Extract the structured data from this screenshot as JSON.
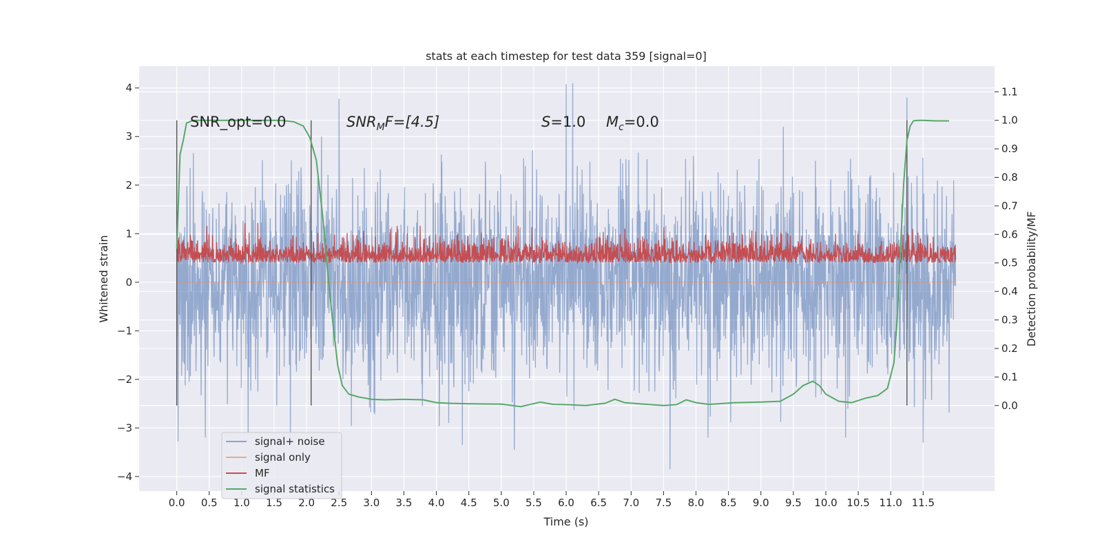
{
  "chart_data": {
    "type": "line",
    "title": "stats at each timestep for test data 359 [signal=0]",
    "xlabel": "Time (s)",
    "ylabel": "Whitened strain",
    "y2label": "Detection probability/MF",
    "xlim": [
      -0.58,
      12.6
    ],
    "ylim": [
      -4.3,
      4.45
    ],
    "y2lim": [
      -0.3,
      1.19
    ],
    "xticks": [
      "0.0",
      "0.5",
      "1.0",
      "1.5",
      "2.0",
      "2.5",
      "3.0",
      "3.5",
      "4.0",
      "4.5",
      "5.0",
      "5.5",
      "6.0",
      "6.5",
      "7.0",
      "7.5",
      "8.0",
      "8.5",
      "9.0",
      "9.5",
      "10.0",
      "10.5",
      "11.0",
      "11.5"
    ],
    "xtick_values": [
      0,
      0.5,
      1,
      1.5,
      2,
      2.5,
      3,
      3.5,
      4,
      4.5,
      5,
      5.5,
      6,
      6.5,
      7,
      7.5,
      8,
      8.5,
      9,
      9.5,
      10,
      10.5,
      11,
      11.5
    ],
    "yticks": [
      "4",
      "3",
      "2",
      "1",
      "0",
      "−1",
      "−2",
      "−3",
      "−4"
    ],
    "ytick_values": [
      4,
      3,
      2,
      1,
      0,
      -1,
      -2,
      -3,
      -4
    ],
    "y2ticks": [
      "1.1",
      "1.0",
      "0.9",
      "0.8",
      "0.7",
      "0.6",
      "0.5",
      "0.4",
      "0.3",
      "0.2",
      "0.1",
      "0.0"
    ],
    "y2tick_values": [
      1.1,
      1.0,
      0.9,
      0.8,
      0.7,
      0.6,
      0.5,
      0.4,
      0.3,
      0.2,
      0.1,
      0.0
    ],
    "grid": true,
    "legend_position": "bottom-left",
    "annotations": {
      "snr_opt": "SNR_opt=0.0",
      "snr_mf_sym": "SNR",
      "snr_mf_sub": "M",
      "snr_mf_rest": "F=[4.5]",
      "s_sym": "S",
      "s_rest": "=1.0",
      "mc_sym": "M",
      "mc_sub": "c",
      "mc_rest": "=0.0"
    },
    "detection_markers_x": [
      0.0,
      2.07,
      11.25
    ],
    "series": [
      {
        "name": "signal+ noise",
        "color": "#4c72b0",
        "axis": "left",
        "x_range": [
          0,
          12.0
        ],
        "dt": 0.005,
        "amplitude_sd": 1.0,
        "peaks": [
          [
            2.5,
            3.78
          ],
          [
            6.0,
            4.08
          ],
          [
            6.1,
            4.1
          ],
          [
            11.25,
            3.8
          ],
          [
            7.6,
            -3.85
          ],
          [
            5.2,
            -3.45
          ],
          [
            4.4,
            -3.35
          ],
          [
            11.5,
            -3.3
          ],
          [
            0.02,
            -3.28
          ],
          [
            1.1,
            -3.1
          ]
        ]
      },
      {
        "name": "signal only",
        "color": "#dd8452",
        "axis": "left",
        "x": [
          0,
          12.0
        ],
        "y": [
          0,
          0
        ]
      },
      {
        "name": "MF",
        "color": "#c44e52",
        "axis": "right",
        "x_range": [
          0,
          12.0
        ],
        "dt": 0.005,
        "baseline": 0.5,
        "range": [
          0.5,
          0.65
        ],
        "peaks": [
          [
            1.05,
            0.64
          ],
          [
            1.25,
            0.64
          ]
        ]
      },
      {
        "name": "signal statistics",
        "color": "#55a868",
        "axis": "right",
        "x": [
          0,
          0.05,
          0.1,
          0.15,
          0.25,
          0.4,
          0.8,
          1.2,
          1.6,
          1.8,
          1.95,
          2.05,
          2.15,
          2.25,
          2.32,
          2.4,
          2.48,
          2.55,
          2.65,
          2.8,
          3.0,
          3.2,
          3.5,
          3.8,
          4.0,
          4.2,
          4.5,
          5.0,
          5.3,
          5.6,
          5.8,
          6.0,
          6.3,
          6.6,
          6.75,
          6.9,
          7.2,
          7.5,
          7.7,
          7.85,
          8.0,
          8.2,
          8.6,
          9.0,
          9.3,
          9.5,
          9.65,
          9.8,
          9.9,
          10.0,
          10.2,
          10.4,
          10.6,
          10.8,
          10.95,
          11.05,
          11.1,
          11.15,
          11.2,
          11.25,
          11.3,
          11.35,
          11.42,
          11.5,
          11.7,
          11.9
        ],
        "y": [
          0.55,
          0.88,
          0.93,
          0.99,
          1.0,
          1.0,
          1.0,
          1.0,
          1.0,
          0.995,
          0.98,
          0.94,
          0.86,
          0.66,
          0.48,
          0.3,
          0.14,
          0.07,
          0.04,
          0.03,
          0.022,
          0.02,
          0.022,
          0.02,
          0.01,
          0.008,
          0.006,
          0.005,
          -0.004,
          0.012,
          0.004,
          0.003,
          0.0,
          0.008,
          0.022,
          0.01,
          0.005,
          0.0,
          0.003,
          0.02,
          0.01,
          0.004,
          0.01,
          0.012,
          0.015,
          0.04,
          0.07,
          0.085,
          0.07,
          0.04,
          0.015,
          0.01,
          0.025,
          0.035,
          0.06,
          0.15,
          0.3,
          0.55,
          0.78,
          0.93,
          0.98,
          0.998,
          1.0,
          1.0,
          0.998,
          0.998
        ]
      }
    ]
  }
}
